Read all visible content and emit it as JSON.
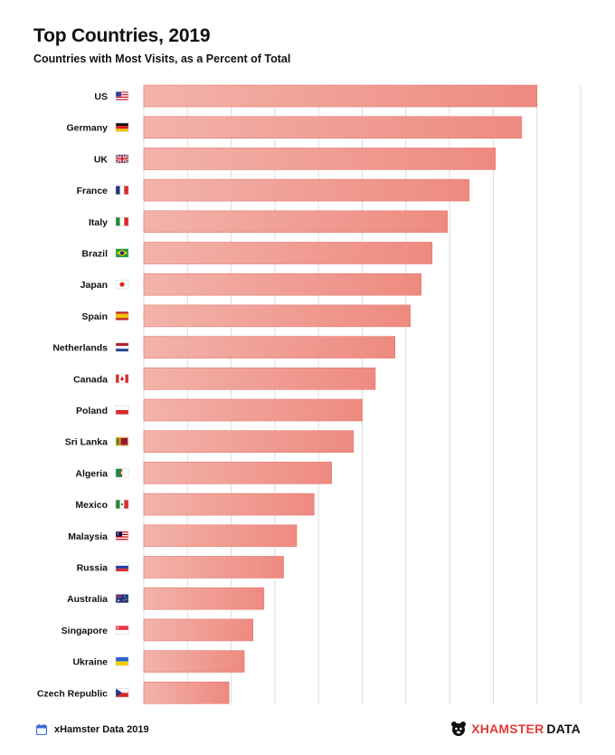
{
  "title": "Top Countries, 2019",
  "subtitle": "Countries with Most Visits, as a Percent of Total",
  "colors": {
    "bar_light": "#f2b3aa",
    "bar_dark": "#ee8a80",
    "bar_stroke": "#e57a70",
    "grid": "#dddddd",
    "brand_red": "#e23a3a",
    "calendar": "#3b6fd8"
  },
  "footer": {
    "source": "xHamster Data 2019",
    "brand_prefix": "XHAMSTER",
    "brand_suffix": "DATA",
    "source_icon": "calendar-icon",
    "brand_icon": "hamster-logo-icon"
  },
  "chart_data": {
    "type": "bar",
    "orientation": "horizontal",
    "categories": [
      "US",
      "Germany",
      "UK",
      "France",
      "Italy",
      "Brazil",
      "Japan",
      "Spain",
      "Netherlands",
      "Canada",
      "Poland",
      "Sri Lanka",
      "Algeria",
      "Mexico",
      "Malaysia",
      "Russia",
      "Australia",
      "Singapore",
      "Ukraine",
      "Czech Republic"
    ],
    "flags": [
      "us",
      "de",
      "gb",
      "fr",
      "it",
      "br",
      "jp",
      "es",
      "nl",
      "ca",
      "pl",
      "lk",
      "dz",
      "mx",
      "my",
      "ru",
      "au",
      "sg",
      "ua",
      "cz"
    ],
    "values": [
      9.0,
      8.65,
      8.05,
      7.45,
      6.95,
      6.6,
      6.35,
      6.1,
      5.75,
      5.3,
      5.0,
      4.8,
      4.3,
      3.9,
      3.5,
      3.2,
      2.75,
      2.5,
      2.3,
      1.95
    ],
    "xlim": [
      0,
      10
    ],
    "grid": true,
    "grid_step": 1,
    "tick_labels_shown": false
  }
}
